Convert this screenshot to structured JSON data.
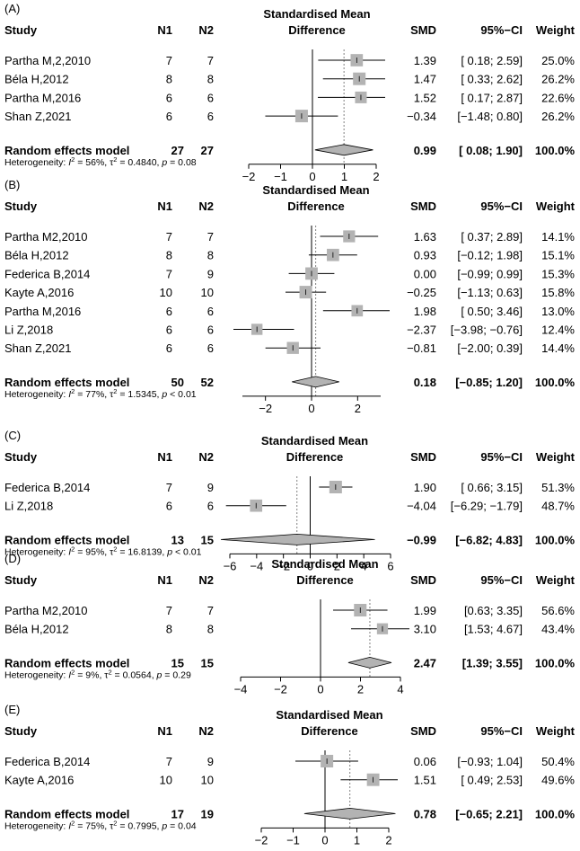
{
  "headers": {
    "study": "Study",
    "n1": "N1",
    "n2": "N2",
    "smd_title_line1": "Standardised Mean",
    "smd_title_line2": "Difference",
    "smd": "SMD",
    "ci": "95%−CI",
    "weight": "Weight"
  },
  "colors": {
    "box": "#b3b3b3",
    "diamond": "#b3b3b3",
    "line": "#000000",
    "dotted": "#808080"
  },
  "chart_data": [
    {
      "type": "forest",
      "label": "(A)",
      "xlim": [
        -2,
        2
      ],
      "ticks": [
        "−2",
        "−1",
        "0",
        "1",
        "2"
      ],
      "tick_values": [
        -2,
        -1,
        0,
        1,
        2
      ],
      "studies": [
        {
          "name": "Partha M,2,2010",
          "n1": "7",
          "n2": "7",
          "smd": 1.39,
          "lo": 0.18,
          "hi": 2.59,
          "smd_text": "1.39",
          "ci_text": "[ 0.18; 2.59]",
          "weight_text": "25.0%",
          "weight": 25.0
        },
        {
          "name": "Béla H,2012",
          "n1": "8",
          "n2": "8",
          "smd": 1.47,
          "lo": 0.33,
          "hi": 2.62,
          "smd_text": "1.47",
          "ci_text": "[ 0.33; 2.62]",
          "weight_text": "26.2%",
          "weight": 26.2
        },
        {
          "name": "Partha M,2016",
          "n1": "6",
          "n2": "6",
          "smd": 1.52,
          "lo": 0.17,
          "hi": 2.87,
          "smd_text": "1.52",
          "ci_text": "[ 0.17; 2.87]",
          "weight_text": "22.6%",
          "weight": 22.6
        },
        {
          "name": "Shan Z,2021",
          "n1": "6",
          "n2": "6",
          "smd": -0.34,
          "lo": -1.48,
          "hi": 0.8,
          "smd_text": "−0.34",
          "ci_text": "[−1.48; 0.80]",
          "weight_text": "26.2%",
          "weight": 26.2
        }
      ],
      "summary": {
        "name": "Random effects model",
        "n1": "27",
        "n2": "27",
        "smd": 0.99,
        "lo": 0.08,
        "hi": 1.9,
        "smd_text": "0.99",
        "ci_text": "[ 0.08; 1.90]",
        "weight_text": "100.0%"
      },
      "heterogeneity": {
        "i2": "56%",
        "tau2": "0.4840",
        "p": "= 0.08"
      }
    },
    {
      "type": "forest",
      "label": "(B)",
      "xlim": [
        -3,
        3
      ],
      "ticks": [
        "−2",
        "0",
        "2"
      ],
      "tick_values": [
        -2,
        0,
        2
      ],
      "studies": [
        {
          "name": "Partha M2,2010",
          "n1": "7",
          "n2": "7",
          "smd": 1.63,
          "lo": 0.37,
          "hi": 2.89,
          "smd_text": "1.63",
          "ci_text": "[ 0.37; 2.89]",
          "weight_text": "14.1%",
          "weight": 14.1
        },
        {
          "name": "Béla H,2012",
          "n1": "8",
          "n2": "8",
          "smd": 0.93,
          "lo": -0.12,
          "hi": 1.98,
          "smd_text": "0.93",
          "ci_text": "[−0.12; 1.98]",
          "weight_text": "15.1%",
          "weight": 15.1
        },
        {
          "name": "Federica B,2014",
          "n1": "7",
          "n2": "9",
          "smd": 0.0,
          "lo": -0.99,
          "hi": 0.99,
          "smd_text": "0.00",
          "ci_text": "[−0.99; 0.99]",
          "weight_text": "15.3%",
          "weight": 15.3
        },
        {
          "name": "Kayte A,2016",
          "n1": "10",
          "n2": "10",
          "smd": -0.25,
          "lo": -1.13,
          "hi": 0.63,
          "smd_text": "−0.25",
          "ci_text": "[−1.13; 0.63]",
          "weight_text": "15.8%",
          "weight": 15.8
        },
        {
          "name": "Partha M,2016",
          "n1": "6",
          "n2": "6",
          "smd": 1.98,
          "lo": 0.5,
          "hi": 3.46,
          "smd_text": "1.98",
          "ci_text": "[ 0.50; 3.46]",
          "weight_text": "13.0%",
          "weight": 13.0
        },
        {
          "name": "Li Z,2018",
          "n1": "6",
          "n2": "6",
          "smd": -2.37,
          "lo": -3.98,
          "hi": -0.76,
          "smd_text": "−2.37",
          "ci_text": "[−3.98; −0.76]",
          "weight_text": "12.4%",
          "weight": 12.4
        },
        {
          "name": "Shan Z,2021",
          "n1": "6",
          "n2": "6",
          "smd": -0.81,
          "lo": -2.0,
          "hi": 0.39,
          "smd_text": "−0.81",
          "ci_text": "[−2.00; 0.39]",
          "weight_text": "14.4%",
          "weight": 14.4
        }
      ],
      "summary": {
        "name": "Random effects model",
        "n1": "50",
        "n2": "52",
        "smd": 0.18,
        "lo": -0.85,
        "hi": 1.2,
        "smd_text": "0.18",
        "ci_text": "[−0.85; 1.20]",
        "weight_text": "100.0%"
      },
      "heterogeneity": {
        "i2": "77%",
        "tau2": "1.5345",
        "p": "< 0.01"
      }
    },
    {
      "type": "forest",
      "label": "(C)",
      "xlim": [
        -6,
        6
      ],
      "ticks": [
        "−6",
        "−4",
        "−2",
        "0",
        "2",
        "4",
        "6"
      ],
      "tick_values": [
        -6,
        -4,
        -2,
        0,
        2,
        4,
        6
      ],
      "studies": [
        {
          "name": "Federica B,2014",
          "n1": "7",
          "n2": "9",
          "smd": 1.9,
          "lo": 0.66,
          "hi": 3.15,
          "smd_text": "1.90",
          "ci_text": "[ 0.66; 3.15]",
          "weight_text": "51.3%",
          "weight": 51.3
        },
        {
          "name": "Li Z,2018",
          "n1": "6",
          "n2": "6",
          "smd": -4.04,
          "lo": -6.29,
          "hi": -1.79,
          "smd_text": "−4.04",
          "ci_text": "[−6.29; −1.79]",
          "weight_text": "48.7%",
          "weight": 48.7
        }
      ],
      "summary": {
        "name": "Random effects model",
        "n1": "13",
        "n2": "15",
        "smd": -0.99,
        "lo": -6.82,
        "hi": 4.83,
        "smd_text": "−0.99",
        "ci_text": "[−6.82; 4.83]",
        "weight_text": "100.0%"
      },
      "heterogeneity": {
        "i2": "95%",
        "tau2": "16.8139",
        "p": "< 0.01"
      }
    },
    {
      "type": "forest",
      "label": "(D)",
      "xlim": [
        -4,
        4
      ],
      "ticks": [
        "−4",
        "−2",
        "0",
        "2",
        "4"
      ],
      "tick_values": [
        -4,
        -2,
        0,
        2,
        4
      ],
      "studies": [
        {
          "name": "Partha M2,2010",
          "n1": "7",
          "n2": "7",
          "smd": 1.99,
          "lo": 0.63,
          "hi": 3.35,
          "smd_text": "1.99",
          "ci_text": "[0.63; 3.35]",
          "weight_text": "56.6%",
          "weight": 56.6
        },
        {
          "name": "Béla H,2012",
          "n1": "8",
          "n2": "8",
          "smd": 3.1,
          "lo": 1.53,
          "hi": 4.67,
          "smd_text": "3.10",
          "ci_text": "[1.53; 4.67]",
          "weight_text": "43.4%",
          "weight": 43.4
        }
      ],
      "summary": {
        "name": "Random effects model",
        "n1": "15",
        "n2": "15",
        "smd": 2.47,
        "lo": 1.39,
        "hi": 3.55,
        "smd_text": "2.47",
        "ci_text": "[1.39; 3.55]",
        "weight_text": "100.0%"
      },
      "heterogeneity": {
        "i2": "9%",
        "tau2": "0.0564",
        "p": "= 0.29"
      }
    },
    {
      "type": "forest",
      "label": "(E)",
      "xlim": [
        -2,
        2
      ],
      "ticks": [
        "−2",
        "−1",
        "0",
        "1",
        "2"
      ],
      "tick_values": [
        -2,
        -1,
        0,
        1,
        2
      ],
      "studies": [
        {
          "name": "Federica B,2014",
          "n1": "7",
          "n2": "9",
          "smd": 0.06,
          "lo": -0.93,
          "hi": 1.04,
          "smd_text": "0.06",
          "ci_text": "[−0.93; 1.04]",
          "weight_text": "50.4%",
          "weight": 50.4
        },
        {
          "name": "Kayte A,2016",
          "n1": "10",
          "n2": "10",
          "smd": 1.51,
          "lo": 0.49,
          "hi": 2.53,
          "smd_text": "1.51",
          "ci_text": "[ 0.49; 2.53]",
          "weight_text": "49.6%",
          "weight": 49.6
        }
      ],
      "summary": {
        "name": "Random effects model",
        "n1": "17",
        "n2": "19",
        "smd": 0.78,
        "lo": -0.65,
        "hi": 2.21,
        "smd_text": "0.78",
        "ci_text": "[−0.65; 2.21]",
        "weight_text": "100.0%"
      },
      "heterogeneity": {
        "i2": "75%",
        "tau2": "0.7995",
        "p": "= 0.04"
      }
    }
  ]
}
